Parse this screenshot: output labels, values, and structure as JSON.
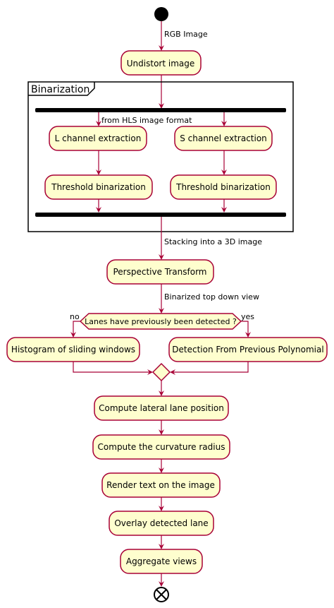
{
  "diagram": {
    "start_node": "start",
    "end_node": "end",
    "edge_labels": {
      "rgb_image": "RGB Image",
      "from_hls": "from HLS image format",
      "stacking": "Stacking into a 3D image",
      "binarized_view": "Binarized top down view",
      "no": "no",
      "yes": "yes"
    },
    "partition": {
      "title": "Binarization"
    },
    "nodes": {
      "undistort": "Undistort image",
      "l_channel": "L channel extraction",
      "s_channel": "S channel extraction",
      "threshold_left": "Threshold binarization",
      "threshold_right": "Threshold binarization",
      "perspective": "Perspective Transform",
      "decision": "Lanes have previously been detected ?",
      "histogram": "Histogram of sliding windows",
      "previous_poly": "Detection From Previous Polynomial",
      "lateral": "Compute lateral lane position",
      "curvature": "Compute the curvature radius",
      "render_text": "Render text on the image",
      "overlay": "Overlay detected lane",
      "aggregate": "Aggregate views"
    },
    "colors": {
      "node_fill": "#FEFECE",
      "line": "#A80036"
    }
  }
}
